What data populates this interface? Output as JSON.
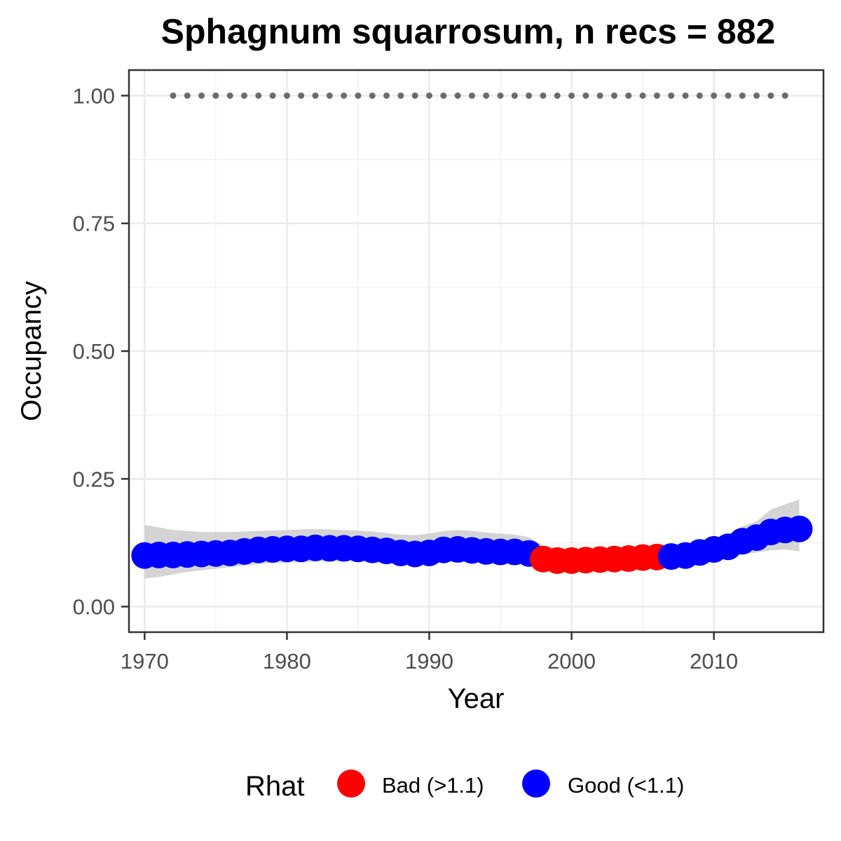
{
  "chart_data": {
    "type": "scatter",
    "title": "Sphagnum squarrosum, n recs = 882",
    "xlabel": "Year",
    "ylabel": "Occupancy",
    "xlim": [
      1968.9,
      2017.7
    ],
    "ylim": [
      -0.05,
      1.05
    ],
    "x_ticks": [
      1970,
      1980,
      1990,
      2000,
      2010
    ],
    "x_tick_labels": [
      "1970",
      "1980",
      "1990",
      "2000",
      "2010"
    ],
    "y_ticks": [
      0,
      0.25,
      0.5,
      0.75,
      1.0
    ],
    "y_tick_labels": [
      "0.00",
      "0.25",
      "0.50",
      "0.75",
      "1.00"
    ],
    "grid": true,
    "legend": {
      "title": "Rhat",
      "position": "bottom",
      "entries": [
        {
          "label": "Bad (>1.1)",
          "color": "#ff0000"
        },
        {
          "label": "Good (<1.1)",
          "color": "#0000ff"
        }
      ]
    },
    "colors": {
      "bad": "#ff0000",
      "good": "#0000ff",
      "band": "#cccccc",
      "reference": "#6b6b6b"
    },
    "series": [
      {
        "x": [
          1970,
          1971,
          1972,
          1973,
          1974,
          1975,
          1976,
          1977,
          1978,
          1979,
          1980,
          1981,
          1982,
          1983,
          1984,
          1985,
          1986,
          1987,
          1988,
          1989,
          1990,
          1991,
          1992,
          1993,
          1994,
          1995,
          1996,
          1997,
          1998,
          1999,
          2000,
          2001,
          2002,
          2003,
          2004,
          2005,
          2006,
          2007,
          2008,
          2009,
          2010,
          2011,
          2012,
          2013,
          2014,
          2015,
          2016
        ],
        "y": [
          0.1,
          0.101,
          0.101,
          0.102,
          0.103,
          0.104,
          0.105,
          0.108,
          0.111,
          0.112,
          0.113,
          0.113,
          0.115,
          0.114,
          0.114,
          0.113,
          0.111,
          0.109,
          0.105,
          0.103,
          0.105,
          0.111,
          0.112,
          0.11,
          0.108,
          0.107,
          0.107,
          0.104,
          0.093,
          0.09,
          0.09,
          0.091,
          0.092,
          0.093,
          0.094,
          0.096,
          0.097,
          0.098,
          0.1,
          0.106,
          0.112,
          0.117,
          0.128,
          0.135,
          0.146,
          0.15,
          0.152
        ],
        "status": [
          "good",
          "good",
          "good",
          "good",
          "good",
          "good",
          "good",
          "good",
          "good",
          "good",
          "good",
          "good",
          "good",
          "good",
          "good",
          "good",
          "good",
          "good",
          "good",
          "good",
          "good",
          "good",
          "good",
          "good",
          "good",
          "good",
          "good",
          "good",
          "bad",
          "bad",
          "bad",
          "bad",
          "bad",
          "bad",
          "bad",
          "bad",
          "bad",
          "good",
          "good",
          "good",
          "good",
          "good",
          "good",
          "good",
          "good",
          "good",
          "good"
        ],
        "lower": [
          0.055,
          0.058,
          0.063,
          0.068,
          0.071,
          0.074,
          0.077,
          0.08,
          0.083,
          0.085,
          0.086,
          0.087,
          0.088,
          0.089,
          0.089,
          0.088,
          0.087,
          0.086,
          0.084,
          0.083,
          0.084,
          0.087,
          0.087,
          0.086,
          0.085,
          0.084,
          0.084,
          0.082,
          0.08,
          0.08,
          0.08,
          0.08,
          0.081,
          0.081,
          0.082,
          0.083,
          0.084,
          0.085,
          0.086,
          0.089,
          0.093,
          0.097,
          0.102,
          0.106,
          0.11,
          0.112,
          0.108
        ],
        "upper": [
          0.16,
          0.155,
          0.15,
          0.148,
          0.146,
          0.146,
          0.146,
          0.147,
          0.148,
          0.149,
          0.15,
          0.151,
          0.152,
          0.151,
          0.15,
          0.149,
          0.147,
          0.144,
          0.141,
          0.14,
          0.143,
          0.148,
          0.15,
          0.148,
          0.145,
          0.143,
          0.141,
          0.136,
          0.12,
          0.115,
          0.112,
          0.112,
          0.112,
          0.112,
          0.112,
          0.113,
          0.114,
          0.115,
          0.12,
          0.126,
          0.134,
          0.142,
          0.157,
          0.167,
          0.19,
          0.2,
          0.21
        ]
      },
      {
        "x": [
          1972,
          1973,
          1974,
          1975,
          1976,
          1977,
          1978,
          1979,
          1980,
          1981,
          1982,
          1983,
          1984,
          1985,
          1986,
          1987,
          1988,
          1989,
          1990,
          1991,
          1992,
          1993,
          1994,
          1995,
          1996,
          1997,
          1998,
          1999,
          2000,
          2001,
          2002,
          2003,
          2004,
          2005,
          2006,
          2007,
          2008,
          2009,
          2010,
          2011,
          2012,
          2013,
          2014,
          2015
        ],
        "y": [
          1,
          1,
          1,
          1,
          1,
          1,
          1,
          1,
          1,
          1,
          1,
          1,
          1,
          1,
          1,
          1,
          1,
          1,
          1,
          1,
          1,
          1,
          1,
          1,
          1,
          1,
          1,
          1,
          1,
          1,
          1,
          1,
          1,
          1,
          1,
          1,
          1,
          1,
          1,
          1,
          1,
          1,
          1,
          1
        ]
      }
    ]
  }
}
